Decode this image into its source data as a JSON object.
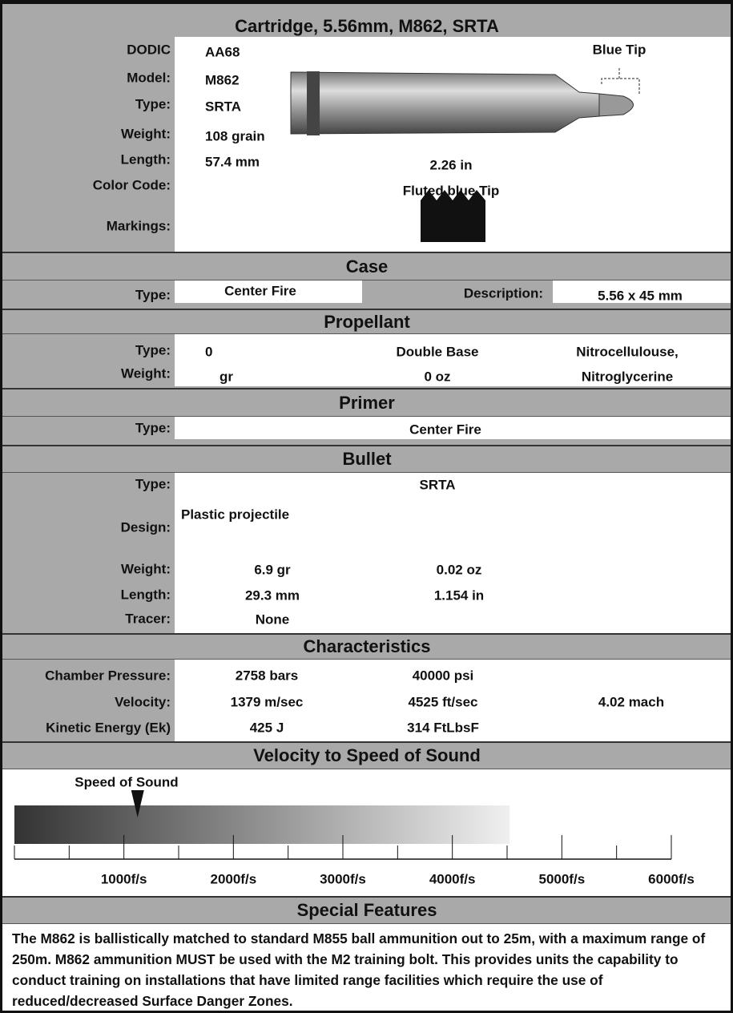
{
  "title": "Cartridge, 5.56mm, M862, SRTA",
  "cartridge": {
    "rows": [
      {
        "label": "DODIC",
        "value": "AA68"
      },
      {
        "label": "Model:",
        "value": "M862"
      },
      {
        "label": "Type:",
        "value": "SRTA"
      },
      {
        "label": "Weight:",
        "value": "108 grain"
      },
      {
        "label": "Length:",
        "value": "57.4 mm",
        "value2": "2.26 in"
      },
      {
        "label": "Color Code:",
        "value2": "Fluted blue Tip"
      },
      {
        "label": "Markings:"
      }
    ],
    "tip_label": "Blue Tip"
  },
  "case": {
    "title": "Case",
    "type_label": "Type:",
    "type": "Center Fire",
    "description_label": "Description:",
    "description": "5.56 x 45 mm"
  },
  "propellant": {
    "title": "Propellant",
    "rows": [
      {
        "label": "Type:",
        "values": [
          "0",
          "Double Base",
          "Nitrocellulouse,"
        ]
      },
      {
        "label": "Weight:",
        "values": [
          "gr",
          "0 oz",
          "Nitroglycerine"
        ]
      }
    ]
  },
  "primer": {
    "title": "Primer",
    "type_label": "Type:",
    "type": "Center Fire"
  },
  "bullet": {
    "title": "Bullet",
    "rows": [
      {
        "label": "Type:",
        "values": [
          "SRTA"
        ]
      },
      {
        "label": "Design:",
        "values": [
          "Plastic projectile"
        ]
      },
      {
        "label": "Weight:",
        "values": [
          "6.9 gr",
          "0.02 oz"
        ]
      },
      {
        "label": "Length:",
        "values": [
          "29.3 mm",
          "1.154 in"
        ]
      },
      {
        "label": "Tracer:",
        "values": [
          "None"
        ]
      }
    ]
  },
  "characteristics": {
    "title": "Characteristics",
    "rows": [
      {
        "label": "Chamber Pressure:",
        "values": [
          "2758 bars",
          "40000 psi"
        ]
      },
      {
        "label": "Velocity:",
        "values": [
          "1379 m/sec",
          "4525 ft/sec",
          "4.02 mach"
        ]
      },
      {
        "label": "Kinetic Energy (Ek)",
        "values": [
          "425 J",
          "314 FtLbsF"
        ]
      }
    ]
  },
  "velocity_chart": {
    "title": "Velocity to Speed of Sound",
    "marker_label": "Speed of Sound",
    "marker_value": 1125,
    "bar_end": 4525,
    "xlim": [
      0,
      6000
    ],
    "xticks": [
      {
        "value": 1000,
        "label": "1000f/s"
      },
      {
        "value": 2000,
        "label": "2000f/s"
      },
      {
        "value": 3000,
        "label": "3000f/s"
      },
      {
        "value": 4000,
        "label": "4000f/s"
      },
      {
        "value": 5000,
        "label": "5000f/s"
      },
      {
        "value": 6000,
        "label": "6000f/s"
      }
    ],
    "minor_ticks": [
      0,
      500,
      1500,
      2500,
      3500,
      4500,
      5500
    ]
  },
  "special_features": {
    "title": "Special Features",
    "text": "The M862 is ballistically matched to standard M855 ball ammunition out to 25m, with a maximum range of 250m. M862 ammunition MUST be used with the M2 training bolt. This provides units the capability to conduct training on installations that have limited range facilities which require the use of reduced/decreased Surface Danger Zones."
  }
}
